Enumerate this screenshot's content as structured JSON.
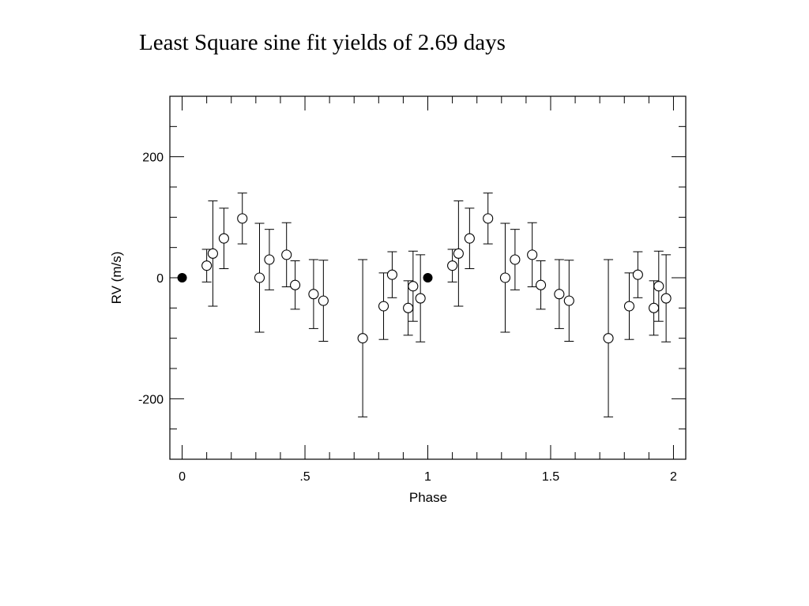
{
  "slide": {
    "title": "Least Square sine fit yields of 2.69 days"
  },
  "chart_data": {
    "type": "scatter",
    "xlabel": "Phase",
    "ylabel": "RV (m/s)",
    "xlim": [
      -0.05,
      2.05
    ],
    "ylim": [
      -300,
      300
    ],
    "x_ticks": [
      {
        "value": 0,
        "label": "0"
      },
      {
        "value": 0.5,
        "label": ".5"
      },
      {
        "value": 1,
        "label": "1"
      },
      {
        "value": 1.5,
        "label": "1.5"
      },
      {
        "value": 2,
        "label": "2"
      }
    ],
    "y_ticks": [
      {
        "value": -200,
        "label": "-200"
      },
      {
        "value": 0,
        "label": "0"
      },
      {
        "value": 200,
        "label": "200"
      }
    ],
    "grid": false,
    "series": [
      {
        "marker": "open-circle",
        "points": [
          {
            "x": 0.1,
            "y": 20,
            "err": 27
          },
          {
            "x": 0.125,
            "y": 40,
            "err": 87
          },
          {
            "x": 0.17,
            "y": 65,
            "err": 50
          },
          {
            "x": 0.245,
            "y": 98,
            "err": 42
          },
          {
            "x": 0.315,
            "y": 0,
            "err": 90
          },
          {
            "x": 0.355,
            "y": 30,
            "err": 50
          },
          {
            "x": 0.425,
            "y": 38,
            "err": 53
          },
          {
            "x": 0.46,
            "y": -12,
            "err": 40
          },
          {
            "x": 0.535,
            "y": -27,
            "err": 57
          },
          {
            "x": 0.575,
            "y": -38,
            "err": 67
          },
          {
            "x": 0.735,
            "y": -100,
            "err": 130
          },
          {
            "x": 0.82,
            "y": -47,
            "err": 55
          },
          {
            "x": 0.855,
            "y": 5,
            "err": 38
          },
          {
            "x": 0.92,
            "y": -50,
            "err": 45
          },
          {
            "x": 0.94,
            "y": -14,
            "err": 58
          },
          {
            "x": 0.97,
            "y": -34,
            "err": 72
          },
          {
            "x": 1.1,
            "y": 20,
            "err": 27
          },
          {
            "x": 1.125,
            "y": 40,
            "err": 87
          },
          {
            "x": 1.17,
            "y": 65,
            "err": 50
          },
          {
            "x": 1.245,
            "y": 98,
            "err": 42
          },
          {
            "x": 1.315,
            "y": 0,
            "err": 90
          },
          {
            "x": 1.355,
            "y": 30,
            "err": 50
          },
          {
            "x": 1.425,
            "y": 38,
            "err": 53
          },
          {
            "x": 1.46,
            "y": -12,
            "err": 40
          },
          {
            "x": 1.535,
            "y": -27,
            "err": 57
          },
          {
            "x": 1.575,
            "y": -38,
            "err": 67
          },
          {
            "x": 1.735,
            "y": -100,
            "err": 130
          },
          {
            "x": 1.82,
            "y": -47,
            "err": 55
          },
          {
            "x": 1.855,
            "y": 5,
            "err": 38
          },
          {
            "x": 1.92,
            "y": -50,
            "err": 45
          },
          {
            "x": 1.94,
            "y": -14,
            "err": 58
          },
          {
            "x": 1.97,
            "y": -34,
            "err": 72
          }
        ]
      },
      {
        "marker": "filled-circle",
        "points": [
          {
            "x": 0,
            "y": 0
          },
          {
            "x": 1,
            "y": 0
          }
        ]
      }
    ],
    "colors": {
      "axes": "#000000",
      "marker_fill": "#000000",
      "background": "#ffffff"
    }
  }
}
